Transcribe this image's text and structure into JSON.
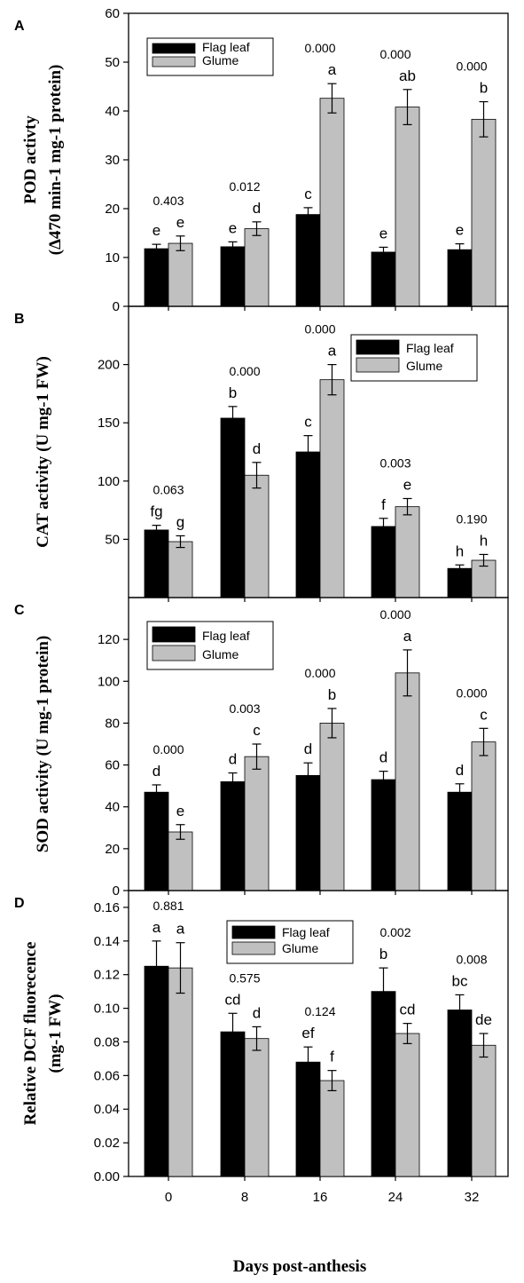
{
  "figure": {
    "xlabel": "Days post-anthesis",
    "categories": [
      "0",
      "8",
      "16",
      "24",
      "32"
    ],
    "colors": {
      "flag_leaf": "#000000",
      "glume": "#c0c0c0"
    }
  },
  "chart_data": [
    {
      "panel": "A",
      "type": "bar",
      "ylabel_lines": [
        "POD activty",
        "(Δ470 min-1 mg-1 protein)"
      ],
      "ylim": [
        0,
        60
      ],
      "yticks": [
        0,
        10,
        20,
        30,
        40,
        50,
        60
      ],
      "categories": [
        "0",
        "8",
        "16",
        "24",
        "32"
      ],
      "series": [
        {
          "name": "Flag leaf",
          "values": [
            11.8,
            12.2,
            18.8,
            11.1,
            11.6
          ],
          "errors": [
            0.9,
            1.0,
            1.4,
            1.0,
            1.2
          ],
          "letters": [
            "e",
            "e",
            "c",
            "e",
            "e"
          ]
        },
        {
          "name": "Glume",
          "values": [
            12.9,
            15.9,
            42.6,
            40.8,
            38.3
          ],
          "errors": [
            1.5,
            1.4,
            3.0,
            3.6,
            3.6
          ],
          "letters": [
            "e",
            "d",
            "a",
            "ab",
            "b"
          ]
        }
      ],
      "pvalues": [
        "0.403",
        "0.012",
        "0.000",
        "0.000",
        "0.000"
      ],
      "legend": [
        "Flag leaf",
        "Glume"
      ]
    },
    {
      "panel": "B",
      "type": "bar",
      "ylabel_lines": [
        "CAT activity (U mg-1 FW)"
      ],
      "ylim": [
        0,
        250
      ],
      "yticks": [
        50,
        100,
        150,
        200
      ],
      "categories": [
        "0",
        "8",
        "16",
        "24",
        "32"
      ],
      "series": [
        {
          "name": "Flag leaf",
          "values": [
            58,
            154,
            125,
            61,
            25
          ],
          "errors": [
            4,
            10,
            14,
            7,
            3
          ],
          "letters": [
            "fg",
            "b",
            "c",
            "f",
            "h"
          ]
        },
        {
          "name": "Glume",
          "values": [
            48,
            105,
            187,
            78,
            32
          ],
          "errors": [
            5,
            11,
            13,
            7,
            5
          ],
          "letters": [
            "g",
            "d",
            "a",
            "e",
            "h"
          ]
        }
      ],
      "pvalues": [
        "0.063",
        "0.000",
        "0.000",
        "0.003",
        "0.190"
      ],
      "legend": [
        "Flag leaf",
        "Glume"
      ]
    },
    {
      "panel": "C",
      "type": "bar",
      "ylabel_lines": [
        "SOD activity (U mg-1 protein)"
      ],
      "ylim": [
        0,
        140
      ],
      "yticks": [
        0,
        20,
        40,
        60,
        80,
        100,
        120
      ],
      "categories": [
        "0",
        "8",
        "16",
        "24",
        "32"
      ],
      "series": [
        {
          "name": "Flag leaf",
          "values": [
            47,
            52,
            55,
            53,
            47
          ],
          "errors": [
            3.5,
            4.2,
            6,
            4,
            4
          ],
          "letters": [
            "d",
            "d",
            "d",
            "d",
            "d"
          ]
        },
        {
          "name": "Glume",
          "values": [
            28,
            64,
            80,
            104,
            71
          ],
          "errors": [
            3.5,
            6,
            7,
            11,
            6.5
          ],
          "letters": [
            "e",
            "c",
            "b",
            "a",
            "c"
          ]
        }
      ],
      "pvalues": [
        "0.000",
        "0.003",
        "0.000",
        "0.000",
        "0.000"
      ],
      "legend": [
        "Flag leaf",
        "Glume"
      ]
    },
    {
      "panel": "D",
      "type": "bar",
      "ylabel_lines": [
        "Relative DCF fluorecence",
        "(mg-1 FW)"
      ],
      "ylim": [
        0,
        0.17
      ],
      "yticks": [
        0.0,
        0.02,
        0.04,
        0.06,
        0.08,
        0.1,
        0.12,
        0.14,
        0.16
      ],
      "categories": [
        "0",
        "8",
        "16",
        "24",
        "32"
      ],
      "series": [
        {
          "name": "Flag leaf",
          "values": [
            0.125,
            0.086,
            0.068,
            0.11,
            0.099
          ],
          "errors": [
            0.015,
            0.011,
            0.009,
            0.014,
            0.009
          ],
          "letters": [
            "a",
            "cd",
            "ef",
            "b",
            "bc"
          ]
        },
        {
          "name": "Glume",
          "values": [
            0.124,
            0.082,
            0.057,
            0.085,
            0.078
          ],
          "errors": [
            0.015,
            0.007,
            0.006,
            0.006,
            0.007
          ],
          "letters": [
            "a",
            "d",
            "f",
            "cd",
            "de"
          ]
        }
      ],
      "pvalues": [
        "0.881",
        "0.575",
        "0.124",
        "0.002",
        "0.008"
      ],
      "legend": [
        "Flag leaf",
        "Glume"
      ]
    }
  ]
}
